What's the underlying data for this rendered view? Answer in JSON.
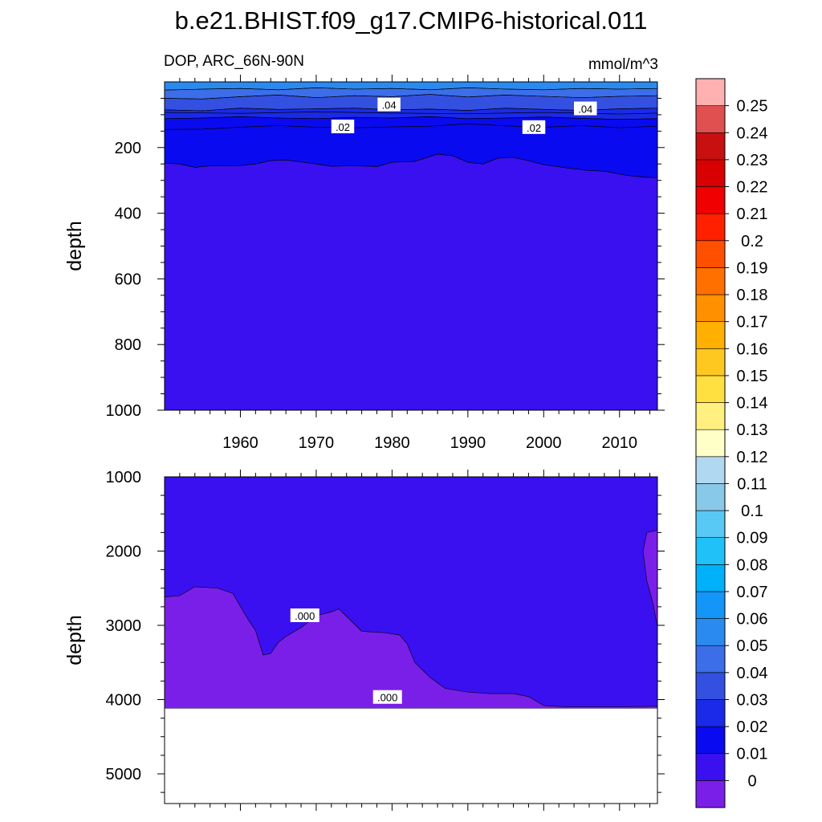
{
  "title": "b.e21.BHIST.f09_g17.CMIP6-historical.011",
  "subtitle_left": "DOP, ARC_66N-90N",
  "subtitle_right": "mmol/m^3",
  "chart_data": [
    {
      "type": "contour",
      "panel": "upper",
      "ylabel": "depth",
      "y_reversed": true,
      "x_range": [
        1950,
        2015
      ],
      "y_range": [
        0,
        1000
      ],
      "x_tick_labels": [
        {
          "v": 1960,
          "label": "1960"
        },
        {
          "v": 1970,
          "label": "1970"
        },
        {
          "v": 1980,
          "label": "1980"
        },
        {
          "v": 1990,
          "label": "1990"
        },
        {
          "v": 2000,
          "label": "2000"
        },
        {
          "v": 2010,
          "label": "2010"
        }
      ],
      "y_tick_labels": [
        {
          "v": 200,
          "label": "200"
        },
        {
          "v": 400,
          "label": "400"
        },
        {
          "v": 600,
          "label": "600"
        },
        {
          "v": 800,
          "label": "800"
        },
        {
          "v": 1000,
          "label": "1000"
        }
      ],
      "contour_labels": [
        {
          "text": ".04",
          "x": 1979.6,
          "y": 70
        },
        {
          "text": ".04",
          "x": 2005.5,
          "y": 82
        },
        {
          "text": ".02",
          "x": 1973.5,
          "y": 137
        },
        {
          "text": ".02",
          "x": 1998.7,
          "y": 139
        }
      ],
      "bands": [
        {
          "min": 0.01,
          "max": 0.02,
          "color": "#0a0af0",
          "boundary": [
            [
              1950,
              145
            ],
            [
              1955,
              144
            ],
            [
              1960,
              138
            ],
            [
              1965,
              133
            ],
            [
              1970,
              138
            ],
            [
              1975,
              140
            ],
            [
              1980,
              137
            ],
            [
              1985,
              135
            ],
            [
              1990,
              128
            ],
            [
              1995,
              134
            ],
            [
              2000,
              138
            ],
            [
              2005,
              133
            ],
            [
              2010,
              140
            ],
            [
              2015,
              135
            ]
          ]
        },
        {
          "min": 0.02,
          "max": 0.03,
          "color": "#1a2ae8",
          "boundary": [
            [
              1950,
              112
            ],
            [
              1955,
              110
            ],
            [
              1960,
              106
            ],
            [
              1965,
              110
            ],
            [
              1970,
              112
            ],
            [
              1975,
              108
            ],
            [
              1980,
              110
            ],
            [
              1985,
              106
            ],
            [
              1990,
              112
            ],
            [
              1995,
              110
            ],
            [
              2000,
              107
            ],
            [
              2005,
              111
            ],
            [
              2010,
              114
            ],
            [
              2015,
              112
            ]
          ]
        },
        {
          "min": 0.03,
          "max": 0.04,
          "color": "#3450e0",
          "boundary": [
            [
              1950,
              85
            ],
            [
              1955,
              88
            ],
            [
              1960,
              80
            ],
            [
              1965,
              84
            ],
            [
              1970,
              82
            ],
            [
              1975,
              80
            ],
            [
              1980,
              85
            ],
            [
              1985,
              83
            ],
            [
              1990,
              87
            ],
            [
              1995,
              80
            ],
            [
              2000,
              84
            ],
            [
              2005,
              87
            ],
            [
              2010,
              82
            ],
            [
              2015,
              80
            ]
          ]
        },
        {
          "min": 0.04,
          "max": 0.05,
          "color": "#3b6ee8",
          "boundary": [
            [
              1950,
              50
            ],
            [
              1955,
              52
            ],
            [
              1960,
              45
            ],
            [
              1965,
              40
            ],
            [
              1970,
              48
            ],
            [
              1975,
              42
            ],
            [
              1980,
              45
            ],
            [
              1985,
              38
            ],
            [
              1990,
              46
            ],
            [
              1995,
              40
            ],
            [
              2000,
              44
            ],
            [
              2005,
              48
            ],
            [
              2010,
              44
            ],
            [
              2015,
              42
            ]
          ]
        },
        {
          "min": 0.05,
          "max": 0.06,
          "color": "#2a8af0",
          "boundary": [
            [
              1950,
              25
            ],
            [
              1955,
              22
            ],
            [
              1960,
              20
            ],
            [
              1965,
              24
            ],
            [
              1970,
              18
            ],
            [
              1975,
              22
            ],
            [
              1980,
              20
            ],
            [
              1985,
              24
            ],
            [
              1990,
              18
            ],
            [
              1995,
              22
            ],
            [
              2000,
              24
            ],
            [
              2005,
              20
            ],
            [
              2010,
              22
            ],
            [
              2015,
              20
            ]
          ]
        }
      ],
      "extra_lines": [
        {
          "level": 0.01,
          "points": [
            [
              1950,
              248
            ],
            [
              1952,
              250
            ],
            [
              1954,
              260
            ],
            [
              1956,
              256
            ],
            [
              1960,
              255
            ],
            [
              1962,
              250
            ],
            [
              1964,
              240
            ],
            [
              1966,
              238
            ],
            [
              1970,
              250
            ],
            [
              1972,
              257
            ],
            [
              1975,
              255
            ],
            [
              1978,
              258
            ],
            [
              1980,
              245
            ],
            [
              1983,
              242
            ],
            [
              1986,
              220
            ],
            [
              1988,
              225
            ],
            [
              1990,
              245
            ],
            [
              1992,
              250
            ],
            [
              1994,
              232
            ],
            [
              1996,
              230
            ],
            [
              1998,
              240
            ],
            [
              2000,
              252
            ],
            [
              2003,
              262
            ],
            [
              2006,
              270
            ],
            [
              2008,
              272
            ],
            [
              2011,
              285
            ],
            [
              2013,
              290
            ],
            [
              2015,
              292
            ]
          ]
        },
        {
          "level": 0.015,
          "points": [
            [
              1950,
              93
            ],
            [
              1960,
              96
            ],
            [
              1970,
              91
            ],
            [
              1980,
              95
            ],
            [
              1990,
              97
            ],
            [
              2000,
              93
            ],
            [
              2010,
              98
            ],
            [
              2015,
              95
            ]
          ]
        }
      ]
    },
    {
      "type": "contour",
      "panel": "lower",
      "ylabel": "depth",
      "y_reversed": true,
      "x_range": [
        1950,
        2015
      ],
      "y_range": [
        1000,
        5400
      ],
      "y_tick_labels": [
        {
          "v": 1000,
          "label": "1000"
        },
        {
          "v": 2000,
          "label": "2000"
        },
        {
          "v": 3000,
          "label": "3000"
        },
        {
          "v": 4000,
          "label": "4000"
        },
        {
          "v": 5000,
          "label": "5000"
        }
      ],
      "bottom_depth": 4120,
      "contour_labels": [
        {
          "text": ".000",
          "x": 1968.5,
          "y": 2870
        },
        {
          "text": ".000",
          "x": 1979.4,
          "y": 3970
        }
      ],
      "bands": [
        {
          "min": -0.01,
          "max": 0.0,
          "color": "#7a1fe8",
          "boundary": [
            [
              1950,
              2620
            ],
            [
              1952,
              2600
            ],
            [
              1954,
              2480
            ],
            [
              1957,
              2500
            ],
            [
              1959,
              2570
            ],
            [
              1961,
              2920
            ],
            [
              1962,
              3070
            ],
            [
              1963,
              3400
            ],
            [
              1964,
              3380
            ],
            [
              1965,
              3230
            ],
            [
              1966,
              3150
            ],
            [
              1968,
              3030
            ],
            [
              1970,
              2870
            ],
            [
              1972,
              2820
            ],
            [
              1973,
              2780
            ],
            [
              1974,
              2880
            ],
            [
              1976,
              3080
            ],
            [
              1979,
              3100
            ],
            [
              1981,
              3130
            ],
            [
              1982,
              3250
            ],
            [
              1983,
              3500
            ],
            [
              1985,
              3700
            ],
            [
              1987,
              3850
            ],
            [
              1990,
              3900
            ],
            [
              1993,
              3920
            ],
            [
              1996,
              3920
            ],
            [
              1998,
              3960
            ],
            [
              2000,
              4080
            ],
            [
              2003,
              4100
            ],
            [
              2010,
              4100
            ],
            [
              2015,
              4090
            ]
          ]
        }
      ],
      "right_patch": [
        [
          2013.1,
          2000
        ],
        [
          2013.6,
          1750
        ],
        [
          2015,
          1720
        ],
        [
          2015,
          3020
        ],
        [
          2014.4,
          2700
        ],
        [
          2013.6,
          2400
        ],
        [
          2013.1,
          2000
        ]
      ]
    }
  ],
  "colorbar": {
    "labels": [
      "0",
      "0.01",
      "0.02",
      "0.03",
      "0.04",
      "0.05",
      "0.06",
      "0.07",
      "0.08",
      "0.09",
      "0.1",
      "0.11",
      "0.12",
      "0.13",
      "0.14",
      "0.15",
      "0.16",
      "0.17",
      "0.18",
      "0.19",
      "0.2",
      "0.21",
      "0.22",
      "0.23",
      "0.24",
      "0.25"
    ],
    "colors": [
      "#7a1fe8",
      "#3a10f0",
      "#0a0af0",
      "#1a2ae8",
      "#3450e0",
      "#3b6ee8",
      "#2a8af0",
      "#1496f8",
      "#00b0f8",
      "#20c0f8",
      "#58c8f4",
      "#88c8e8",
      "#b0d8f0",
      "#ffffc8",
      "#fff080",
      "#ffe040",
      "#ffc820",
      "#ffb000",
      "#ff9000",
      "#ff7000",
      "#ff5000",
      "#ff2000",
      "#f00000",
      "#d80000",
      "#c81010",
      "#e05050",
      "#ffb0b0"
    ]
  }
}
